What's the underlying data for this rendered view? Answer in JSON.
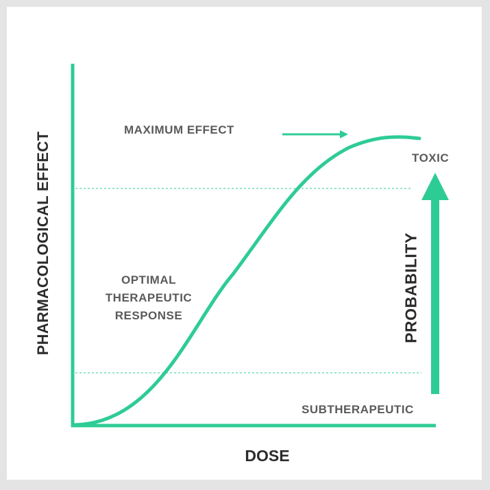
{
  "diagram": {
    "y_axis_label": "PHARMACOLOGICAL EFFECT",
    "x_axis_label": "DOSE",
    "maximum_effect_label": "MAXIMUM EFFECT",
    "toxic_label": "TOXIC",
    "optimal_label_lines": [
      "OPTIMAL",
      "THERAPEUTIC",
      "RESPONSE"
    ],
    "subtherapeutic_label": "SUBTHERAPEUTIC",
    "probability_label": "PROBABILITY",
    "accent_color": "#2ecc95",
    "text_color": "#5a5a5a",
    "axis_text_color": "#2b2b2b"
  }
}
